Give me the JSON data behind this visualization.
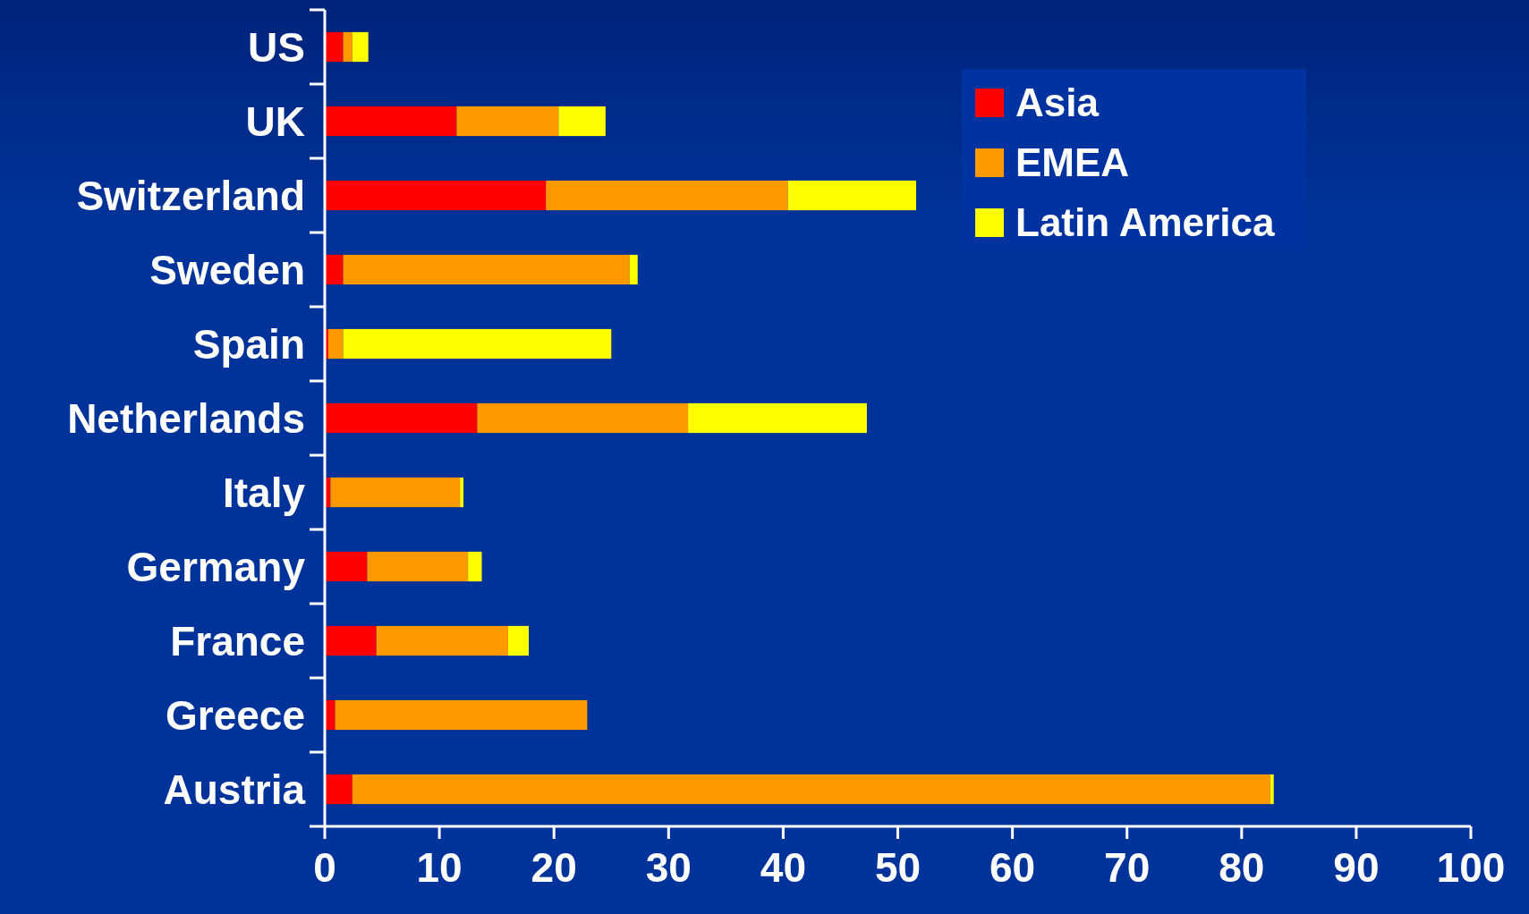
{
  "chart_data": {
    "type": "bar",
    "orientation": "horizontal",
    "stacked": true,
    "categories": [
      "US",
      "UK",
      "Switzerland",
      "Sweden",
      "Spain",
      "Netherlands",
      "Italy",
      "Germany",
      "France",
      "Greece",
      "Austria"
    ],
    "series": [
      {
        "name": "Asia",
        "color": "#ff0000",
        "values": [
          1.6,
          11.5,
          19.3,
          1.6,
          0.3,
          13.3,
          0.5,
          3.7,
          4.5,
          0.9,
          2.4
        ]
      },
      {
        "name": "EMEA",
        "color": "#ff9900",
        "values": [
          0.8,
          8.9,
          21.1,
          25.0,
          1.3,
          18.4,
          11.3,
          8.8,
          11.5,
          22.0,
          80.1
        ]
      },
      {
        "name": "Latin America",
        "color": "#ffff00",
        "values": [
          1.4,
          4.1,
          11.2,
          0.7,
          23.4,
          15.6,
          0.3,
          1.2,
          1.8,
          0,
          0.3
        ]
      }
    ],
    "xlim": [
      0,
      100
    ],
    "xticks": [
      0,
      10,
      20,
      30,
      40,
      50,
      60,
      70,
      80,
      90,
      100
    ],
    "legend": "top right"
  }
}
